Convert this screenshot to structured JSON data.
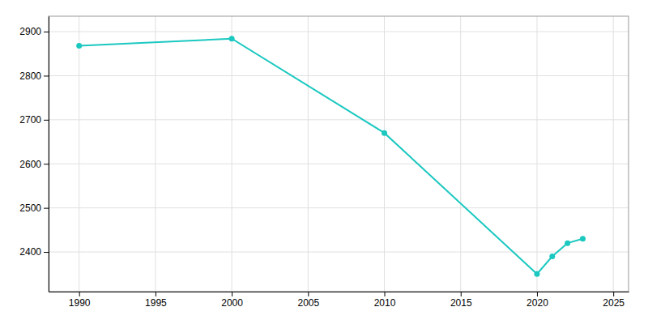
{
  "chart_data": {
    "type": "line",
    "x": [
      1990,
      2000,
      2010,
      2020,
      2021,
      2022,
      2023
    ],
    "values": [
      2868,
      2884,
      2670,
      2350,
      2390,
      2420,
      2430
    ],
    "color": "#1BC8C0",
    "marker": "circle",
    "xlim": [
      1988,
      2026
    ],
    "ylim": [
      2310,
      2935
    ],
    "xticks": [
      1990,
      1995,
      2000,
      2005,
      2010,
      2015,
      2020,
      2025
    ],
    "yticks": [
      2400,
      2500,
      2600,
      2700,
      2800,
      2900
    ],
    "grid": true
  }
}
